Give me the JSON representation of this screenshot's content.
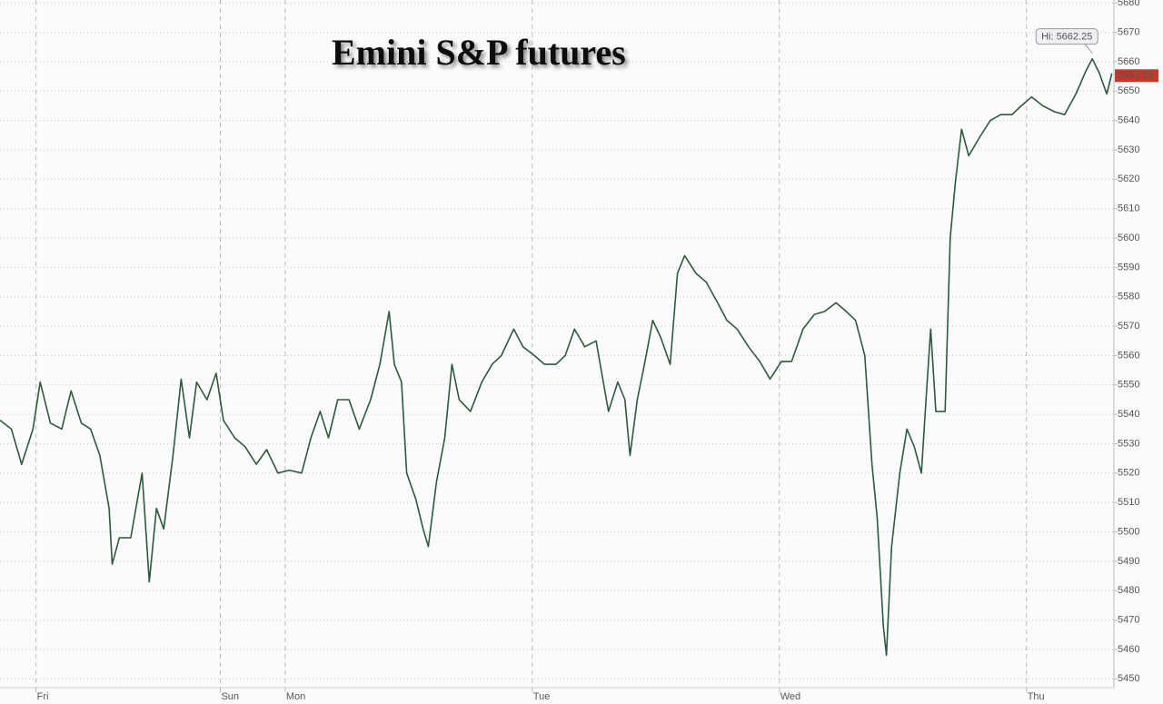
{
  "chart_data": {
    "type": "line",
    "title": "Emini S&P futures",
    "x": [
      0,
      1.1,
      2.1,
      3.2,
      3.9,
      4.9,
      6.0,
      6.9,
      7.9,
      8.8,
      9.7,
      10.6,
      10.9,
      11.6,
      12.7,
      13.8,
      14.5,
      15.2,
      15.9,
      16.8,
      17.6,
      18.4,
      19.1,
      20.1,
      21.0,
      21.7,
      22.8,
      23.8,
      24.9,
      25.9,
      27.0,
      28.1,
      29.3,
      30.2,
      31.1,
      31.9,
      32.8,
      33.9,
      34.9,
      36.0,
      36.9,
      37.8,
      38.3,
      39.0,
      39.5,
      40.4,
      41.1,
      41.6,
      42.4,
      43.2,
      43.9,
      44.6,
      45.7,
      46.8,
      47.8,
      48.7,
      49.9,
      50.8,
      51.9,
      52.9,
      54.0,
      54.9,
      55.8,
      56.8,
      57.9,
      58.6,
      59.1,
      60.0,
      60.7,
      61.2,
      61.9,
      62.6,
      63.4,
      64.2,
      65.1,
      65.8,
      66.5,
      67.6,
      68.6,
      69.7,
      70.6,
      71.6,
      72.7,
      73.8,
      74.8,
      75.9,
      76.9,
      78.0,
      79.1,
      80.1,
      81.2,
      82.2,
      83.1,
      84.0,
      84.7,
      85.2,
      85.8,
      86.1,
      86.6,
      87.4,
      88.1,
      88.8,
      89.5,
      90.0,
      90.4,
      90.9,
      91.8,
      92.3,
      92.8,
      93.4,
      94.1,
      95.1,
      96.2,
      97.2,
      98.3,
      99.2,
      100.2,
      101.3,
      102.4,
      103.4,
      104.5,
      105.5,
      106.1,
      106.8,
      107.5,
      108.0
    ],
    "values": [
      5538,
      5535,
      5523,
      5535,
      5551,
      5537,
      5535,
      5548,
      5537,
      5535,
      5526,
      5508,
      5489,
      5498,
      5498,
      5520,
      5483,
      5508,
      5501,
      5526,
      5552,
      5532,
      5551,
      5545,
      5554,
      5538,
      5532,
      5529,
      5523,
      5528,
      5520,
      5521,
      5520,
      5532,
      5541,
      5532,
      5545,
      5545,
      5535,
      5545,
      5557,
      5575,
      5557,
      5551,
      5520,
      5511,
      5501,
      5495,
      5517,
      5532,
      5557,
      5545,
      5541,
      5551,
      5557,
      5560,
      5569,
      5563,
      5560,
      5557,
      5557,
      5560,
      5569,
      5563,
      5565,
      5551,
      5541,
      5551,
      5545,
      5526,
      5545,
      5557,
      5572,
      5566,
      5557,
      5588,
      5594,
      5588,
      5585,
      5578,
      5572,
      5569,
      5563,
      5558,
      5552,
      5558,
      5558,
      5569,
      5574,
      5575,
      5578,
      5575,
      5572,
      5560,
      5523,
      5505,
      5468,
      5458,
      5495,
      5520,
      5535,
      5529,
      5520,
      5548,
      5569,
      5541,
      5541,
      5600,
      5619,
      5637,
      5628,
      5634,
      5640,
      5642,
      5642,
      5645,
      5648,
      5645,
      5643,
      5642,
      5649,
      5657,
      5661,
      5656,
      5649,
      5656
    ],
    "color": "#2d5a3a",
    "xlim": [
      0,
      108.2
    ],
    "xticks": [
      {
        "value": 3.5,
        "label": "Fri"
      },
      {
        "value": 21.4,
        "label": "Sun"
      },
      {
        "value": 27.7,
        "label": "Mon"
      },
      {
        "value": 51.7,
        "label": "Tue"
      },
      {
        "value": 75.7,
        "label": "Wed"
      },
      {
        "value": 99.7,
        "label": "Thu"
      }
    ],
    "ylim": [
      5447,
      5681
    ],
    "yticks": [
      5450,
      5460,
      5470,
      5480,
      5490,
      5500,
      5510,
      5520,
      5530,
      5540,
      5550,
      5560,
      5570,
      5580,
      5590,
      5600,
      5610,
      5620,
      5630,
      5640,
      5650,
      5660,
      5670,
      5680
    ],
    "grid": true,
    "annotations": [
      {
        "text": "Hi: 5662.25",
        "x": 106.1,
        "y": 5662.25
      }
    ],
    "last_value": 5655.25
  }
}
